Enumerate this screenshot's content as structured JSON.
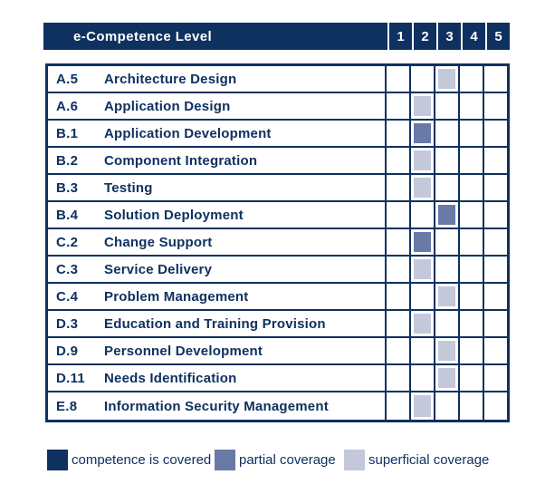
{
  "chart_data": {
    "type": "heatmap",
    "title": "e-Competence Level",
    "columns": [
      "1",
      "2",
      "3",
      "4",
      "5"
    ],
    "rows": [
      {
        "code": "A.5",
        "name": "Architecture Design",
        "level": 3,
        "coverage": "superficial"
      },
      {
        "code": "A.6",
        "name": "Application Design",
        "level": 2,
        "coverage": "superficial"
      },
      {
        "code": "B.1",
        "name": "Application Development",
        "level": 2,
        "coverage": "partial"
      },
      {
        "code": "B.2",
        "name": "Component Integration",
        "level": 2,
        "coverage": "superficial"
      },
      {
        "code": "B.3",
        "name": "Testing",
        "level": 2,
        "coverage": "superficial"
      },
      {
        "code": "B.4",
        "name": "Solution Deployment",
        "level": 3,
        "coverage": "partial"
      },
      {
        "code": "C.2",
        "name": "Change Support",
        "level": 2,
        "coverage": "partial"
      },
      {
        "code": "C.3",
        "name": "Service Delivery",
        "level": 2,
        "coverage": "superficial"
      },
      {
        "code": "C.4",
        "name": "Problem Management",
        "level": 3,
        "coverage": "superficial"
      },
      {
        "code": "D.3",
        "name": "Education and Training Provision",
        "level": 2,
        "coverage": "superficial"
      },
      {
        "code": "D.9",
        "name": "Personnel Development",
        "level": 3,
        "coverage": "superficial"
      },
      {
        "code": "D.11",
        "name": "Needs Identification",
        "level": 3,
        "coverage": "superficial"
      },
      {
        "code": "E.8",
        "name": "Information Security Management",
        "level": 2,
        "coverage": "superficial"
      }
    ],
    "legend": [
      {
        "key": "covered",
        "label": "competence is covered"
      },
      {
        "key": "partial",
        "label": "partial coverage"
      },
      {
        "key": "superficial",
        "label": "superficial coverage"
      }
    ],
    "legend_offsets": [
      0,
      185,
      328
    ],
    "colors": {
      "covered": "#0e3160",
      "partial": "#687aa5",
      "superficial": "#c4c8db",
      "grid": "#0e3160",
      "header_text": "#ffffff"
    },
    "layout_hints": {
      "axis": "columns are competence proficiency levels 1-5",
      "grid": true,
      "legend_position": "bottom"
    }
  }
}
